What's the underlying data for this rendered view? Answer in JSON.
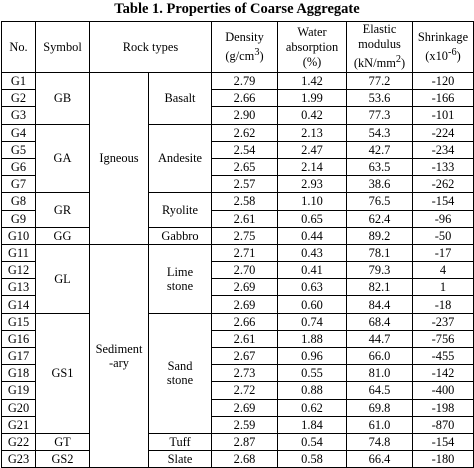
{
  "title": "Table 1.  Properties of Coarse Aggregate",
  "headers": {
    "no": "No.",
    "symbol": "Symbol",
    "rock_types": "Rock types",
    "density_1": "Density",
    "density_2": "(g/cm",
    "density_sup": "3",
    "density_3": ")",
    "water_1": "Water",
    "water_2": "absorption",
    "water_3": "(%)",
    "elastic_1": "Elastic",
    "elastic_2": "modulus",
    "elastic_3": "(kN/mm",
    "elastic_sup": "2",
    "elastic_4": ")",
    "shrink_1": "Shrinkage",
    "shrink_2": "(x10",
    "shrink_sup": "-6",
    "shrink_3": ")"
  },
  "groups": {
    "igneous": "Igneous",
    "sediment_1": "Sediment",
    "sediment_2": "-ary"
  },
  "rock_names": {
    "basalt": "Basalt",
    "andesite": "Andesite",
    "ryolite": "Ryolite",
    "gabbro": "Gabbro",
    "lime_1": "Lime",
    "lime_2": "stone",
    "sand_1": "Sand",
    "sand_2": "stone",
    "tuff": "Tuff",
    "slate": "Slate"
  },
  "symbols": {
    "GB": "GB",
    "GA": "GA",
    "GR": "GR",
    "GG": "GG",
    "GL": "GL",
    "GS1": "GS1",
    "GT": "GT",
    "GS2": "GS2"
  },
  "rows": [
    {
      "no": "G1",
      "density": "2.79",
      "water": "1.42",
      "elastic": "77.2",
      "shrink": "-120"
    },
    {
      "no": "G2",
      "density": "2.66",
      "water": "1.99",
      "elastic": "53.6",
      "shrink": "-166"
    },
    {
      "no": "G3",
      "density": "2.90",
      "water": "0.42",
      "elastic": "77.3",
      "shrink": "-101"
    },
    {
      "no": "G4",
      "density": "2.62",
      "water": "2.13",
      "elastic": "54.3",
      "shrink": "-224"
    },
    {
      "no": "G5",
      "density": "2.54",
      "water": "2.47",
      "elastic": "42.7",
      "shrink": "-234"
    },
    {
      "no": "G6",
      "density": "2.65",
      "water": "2.14",
      "elastic": "63.5",
      "shrink": "-133"
    },
    {
      "no": "G7",
      "density": "2.57",
      "water": "2.93",
      "elastic": "38.6",
      "shrink": "-262"
    },
    {
      "no": "G8",
      "density": "2.58",
      "water": "1.10",
      "elastic": "76.5",
      "shrink": "-154"
    },
    {
      "no": "G9",
      "density": "2.61",
      "water": "0.65",
      "elastic": "62.4",
      "shrink": "-96"
    },
    {
      "no": "G10",
      "density": "2.75",
      "water": "0.44",
      "elastic": "89.2",
      "shrink": "-50"
    },
    {
      "no": "G11",
      "density": "2.71",
      "water": "0.43",
      "elastic": "78.1",
      "shrink": "-17"
    },
    {
      "no": "G12",
      "density": "2.70",
      "water": "0.41",
      "elastic": "79.3",
      "shrink": "4"
    },
    {
      "no": "G13",
      "density": "2.69",
      "water": "0.63",
      "elastic": "82.1",
      "shrink": "1"
    },
    {
      "no": "G14",
      "density": "2.69",
      "water": "0.60",
      "elastic": "84.4",
      "shrink": "-18"
    },
    {
      "no": "G15",
      "density": "2.66",
      "water": "0.74",
      "elastic": "68.4",
      "shrink": "-237"
    },
    {
      "no": "G16",
      "density": "2.61",
      "water": "1.88",
      "elastic": "44.7",
      "shrink": "-756"
    },
    {
      "no": "G17",
      "density": "2.67",
      "water": "0.96",
      "elastic": "66.0",
      "shrink": "-455"
    },
    {
      "no": "G18",
      "density": "2.73",
      "water": "0.55",
      "elastic": "81.0",
      "shrink": "-142"
    },
    {
      "no": "G19",
      "density": "2.72",
      "water": "0.88",
      "elastic": "64.5",
      "shrink": "-400"
    },
    {
      "no": "G20",
      "density": "2.69",
      "water": "0.62",
      "elastic": "69.8",
      "shrink": "-198"
    },
    {
      "no": "G21",
      "density": "2.59",
      "water": "1.84",
      "elastic": "61.0",
      "shrink": "-870"
    },
    {
      "no": "G22",
      "density": "2.87",
      "water": "0.54",
      "elastic": "74.8",
      "shrink": "-154"
    },
    {
      "no": "G23",
      "density": "2.68",
      "water": "0.58",
      "elastic": "66.4",
      "shrink": "-180"
    }
  ]
}
